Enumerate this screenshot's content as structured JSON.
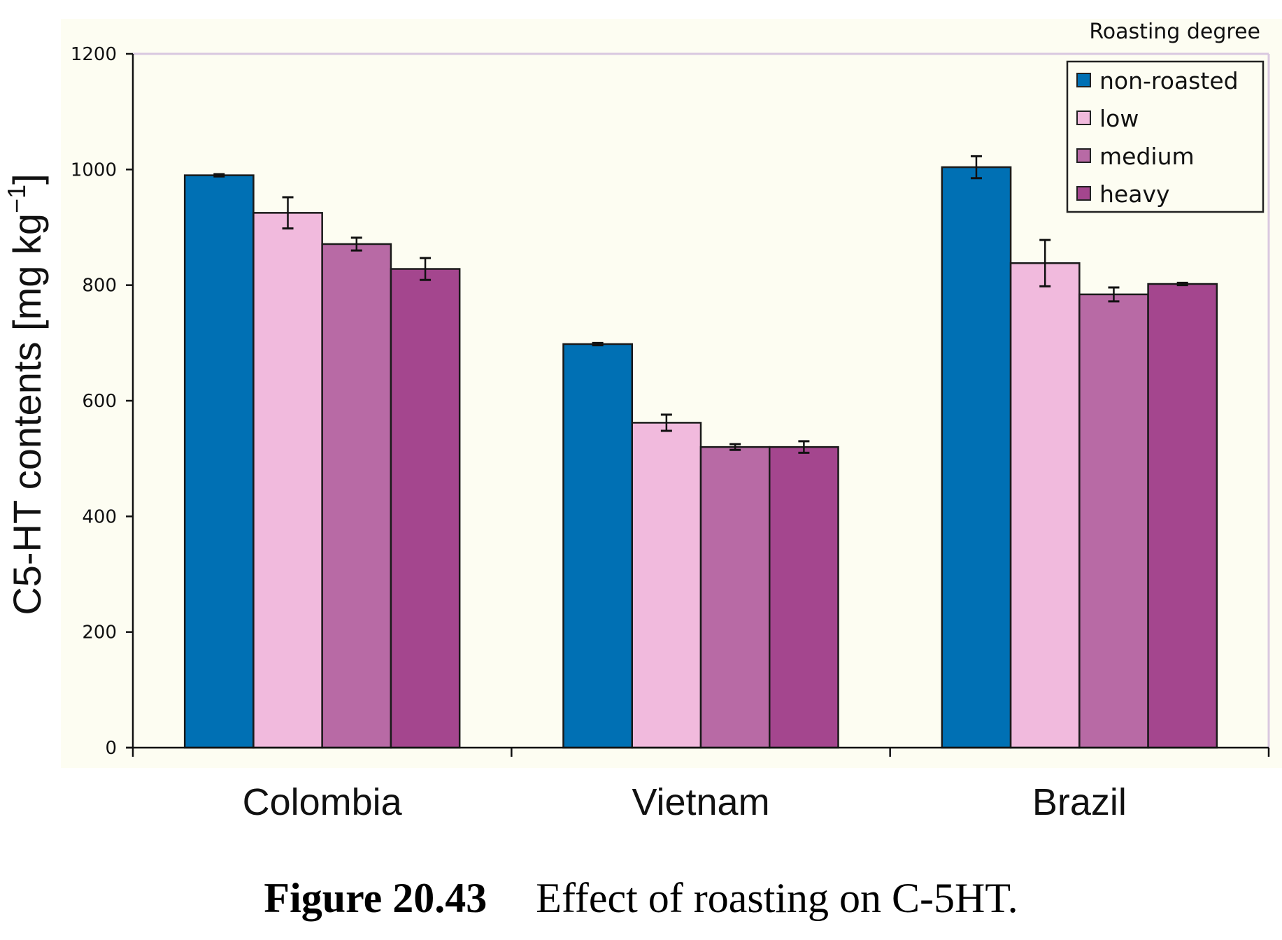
{
  "chart_data": {
    "type": "bar",
    "title": "",
    "xlabel": "",
    "ylabel": "C5-HT contents [mg kg",
    "ylabel_superscript": "−1",
    "ylabel_suffix": "]",
    "ylim": [
      0,
      1200
    ],
    "yticks": [
      0,
      200,
      400,
      600,
      800,
      1000,
      1200
    ],
    "grid": false,
    "categories": [
      "Colombia",
      "Vietnam",
      "Brazil"
    ],
    "legend": {
      "title": "Roasting degree",
      "placement": "top-right"
    },
    "series": [
      {
        "name": "non-roasted",
        "color": "#0070B4",
        "values": [
          990,
          698,
          1004
        ],
        "errors": [
          2,
          2,
          19
        ]
      },
      {
        "name": "low",
        "color": "#F1BADD",
        "values": [
          925,
          562,
          838
        ],
        "errors": [
          27,
          14,
          40
        ]
      },
      {
        "name": "medium",
        "color": "#B86AA5",
        "values": [
          871,
          520,
          784
        ],
        "errors": [
          11,
          5,
          12
        ]
      },
      {
        "name": "heavy",
        "color": "#A4468E",
        "values": [
          828,
          520,
          802
        ],
        "errors": [
          19,
          10,
          2
        ]
      }
    ]
  },
  "caption": {
    "figure_number": "Figure 20.43",
    "text": "Effect of roasting on C-5HT."
  },
  "colors": {
    "panel_background": "#FDFDF2",
    "plot_border": "#D9C8E0",
    "axis": "#111111"
  }
}
